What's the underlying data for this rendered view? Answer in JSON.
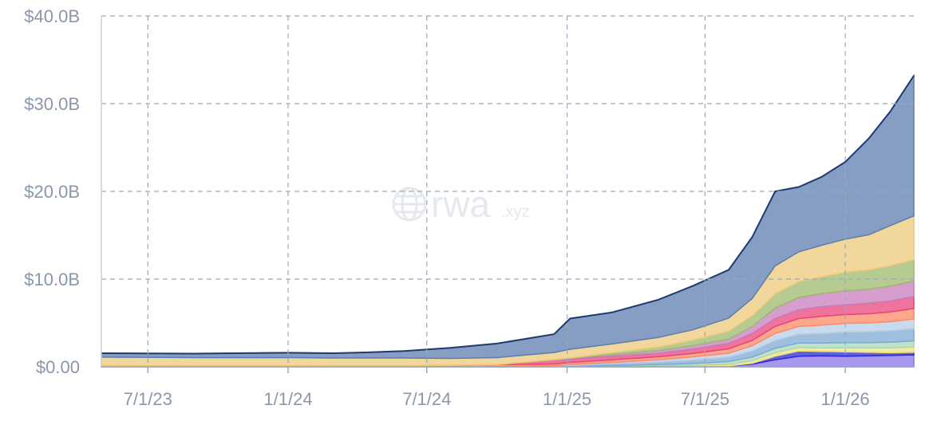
{
  "chart_data": {
    "type": "area",
    "stacked": true,
    "grid": true,
    "watermark": {
      "brand": "rwa",
      "suffix": ".xyz",
      "icon": "globe-icon"
    },
    "ylim": [
      0,
      40
    ],
    "y_ticks": [
      {
        "value": 0,
        "label": "$0.00"
      },
      {
        "value": 10,
        "label": "$10.0B"
      },
      {
        "value": 20,
        "label": "$20.0B"
      },
      {
        "value": 30,
        "label": "$30.0B"
      },
      {
        "value": 40,
        "label": "$40.0B"
      }
    ],
    "xlim": [
      "2023-05-01",
      "2026-04-02"
    ],
    "x_ticks": [
      {
        "date": "2023-07-01",
        "label": "7/1/23"
      },
      {
        "date": "2024-01-01",
        "label": "1/1/24"
      },
      {
        "date": "2024-07-01",
        "label": "7/1/24"
      },
      {
        "date": "2025-01-01",
        "label": "1/1/25"
      },
      {
        "date": "2025-07-01",
        "label": "7/1/25"
      },
      {
        "date": "2026-01-01",
        "label": "1/1/26"
      }
    ],
    "x": [
      "2023-05-01",
      "2023-09-01",
      "2024-01-01",
      "2024-03-01",
      "2024-04-15",
      "2024-06-01",
      "2024-08-01",
      "2024-10-01",
      "2024-12-15",
      "2025-01-05",
      "2025-03-01",
      "2025-05-01",
      "2025-06-15",
      "2025-08-01",
      "2025-09-01",
      "2025-10-01",
      "2025-11-01",
      "2025-12-01",
      "2026-01-01",
      "2026-02-01",
      "2026-03-01",
      "2026-04-01"
    ],
    "series": [
      {
        "color": "#8a74e8",
        "values": [
          0,
          0,
          0,
          0,
          0,
          0,
          0,
          0,
          0,
          0,
          0,
          0,
          0.02,
          0.1,
          0.3,
          0.8,
          1.2,
          1.25,
          1.2,
          1.25,
          1.3,
          1.35
        ]
      },
      {
        "color": "#2a2ad8",
        "values": [
          0,
          0,
          0,
          0,
          0,
          0,
          0,
          0,
          0,
          0,
          0,
          0,
          0,
          0,
          0.1,
          0.4,
          0.6,
          0.5,
          0.5,
          0.4,
          0.3,
          0.3
        ]
      },
      {
        "color": "#f2e17a",
        "values": [
          0,
          0,
          0,
          0,
          0,
          0,
          0,
          0,
          0,
          0,
          0.05,
          0.1,
          0.15,
          0.2,
          0.3,
          0.4,
          0.4,
          0.4,
          0.45,
          0.5,
          0.55,
          0.6
        ]
      },
      {
        "color": "#a9d8b6",
        "values": [
          0,
          0,
          0,
          0,
          0,
          0,
          0,
          0,
          0.02,
          0.05,
          0.1,
          0.15,
          0.2,
          0.3,
          0.4,
          0.5,
          0.5,
          0.55,
          0.6,
          0.6,
          0.65,
          0.7
        ]
      },
      {
        "color": "#7ea9d3",
        "values": [
          0,
          0,
          0,
          0,
          0,
          0,
          0,
          0.02,
          0.05,
          0.1,
          0.2,
          0.3,
          0.4,
          0.5,
          0.7,
          0.9,
          1.0,
          1.1,
          1.2,
          1.25,
          1.3,
          1.4
        ]
      },
      {
        "color": "#b7cde6",
        "values": [
          0,
          0,
          0,
          0,
          0,
          0,
          0.01,
          0.03,
          0.05,
          0.1,
          0.15,
          0.25,
          0.35,
          0.45,
          0.6,
          0.8,
          0.9,
          0.95,
          1.0,
          1.0,
          1.05,
          1.1
        ]
      },
      {
        "color": "#ff8a65",
        "values": [
          0.1,
          0.1,
          0.1,
          0.1,
          0.1,
          0.1,
          0.15,
          0.2,
          0.2,
          0.25,
          0.3,
          0.35,
          0.4,
          0.5,
          0.6,
          0.8,
          0.9,
          1.0,
          1.0,
          1.05,
          1.1,
          1.2
        ]
      },
      {
        "color": "#e8457a",
        "values": [
          0,
          0,
          0,
          0,
          0,
          0,
          0,
          0,
          0.5,
          0.4,
          0.4,
          0.4,
          0.5,
          0.6,
          0.8,
          0.9,
          1.0,
          1.1,
          1.1,
          1.2,
          1.25,
          1.35
        ]
      },
      {
        "color": "#c77dbb",
        "values": [
          0,
          0,
          0,
          0,
          0,
          0,
          0,
          0,
          0,
          0.1,
          0.2,
          0.3,
          0.4,
          0.5,
          0.8,
          1.2,
          1.4,
          1.5,
          1.6,
          1.6,
          1.7,
          1.8
        ]
      },
      {
        "color": "#9dba6e",
        "values": [
          0,
          0,
          0,
          0,
          0,
          0,
          0,
          0,
          0,
          0,
          0.2,
          0.4,
          0.6,
          0.9,
          1.2,
          1.6,
          1.8,
          1.9,
          2.1,
          2.2,
          2.3,
          2.4
        ]
      },
      {
        "color": "#ecc979",
        "values": [
          1.0,
          0.95,
          0.95,
          0.9,
          0.9,
          0.9,
          0.8,
          0.8,
          0.8,
          1.0,
          1.0,
          1.1,
          1.2,
          1.5,
          2.0,
          3.2,
          3.4,
          3.6,
          3.8,
          4.0,
          4.6,
          5.0
        ]
      },
      {
        "color": "#5d7db0",
        "values": [
          0.45,
          0.45,
          0.55,
          0.55,
          0.65,
          0.8,
          1.2,
          1.6,
          2.1,
          3.5,
          3.6,
          4.3,
          5.0,
          5.5,
          7.0,
          8.5,
          7.4,
          7.8,
          8.8,
          11.0,
          13.0,
          16.0
        ]
      }
    ],
    "outline_color": "#1e3b6e"
  }
}
